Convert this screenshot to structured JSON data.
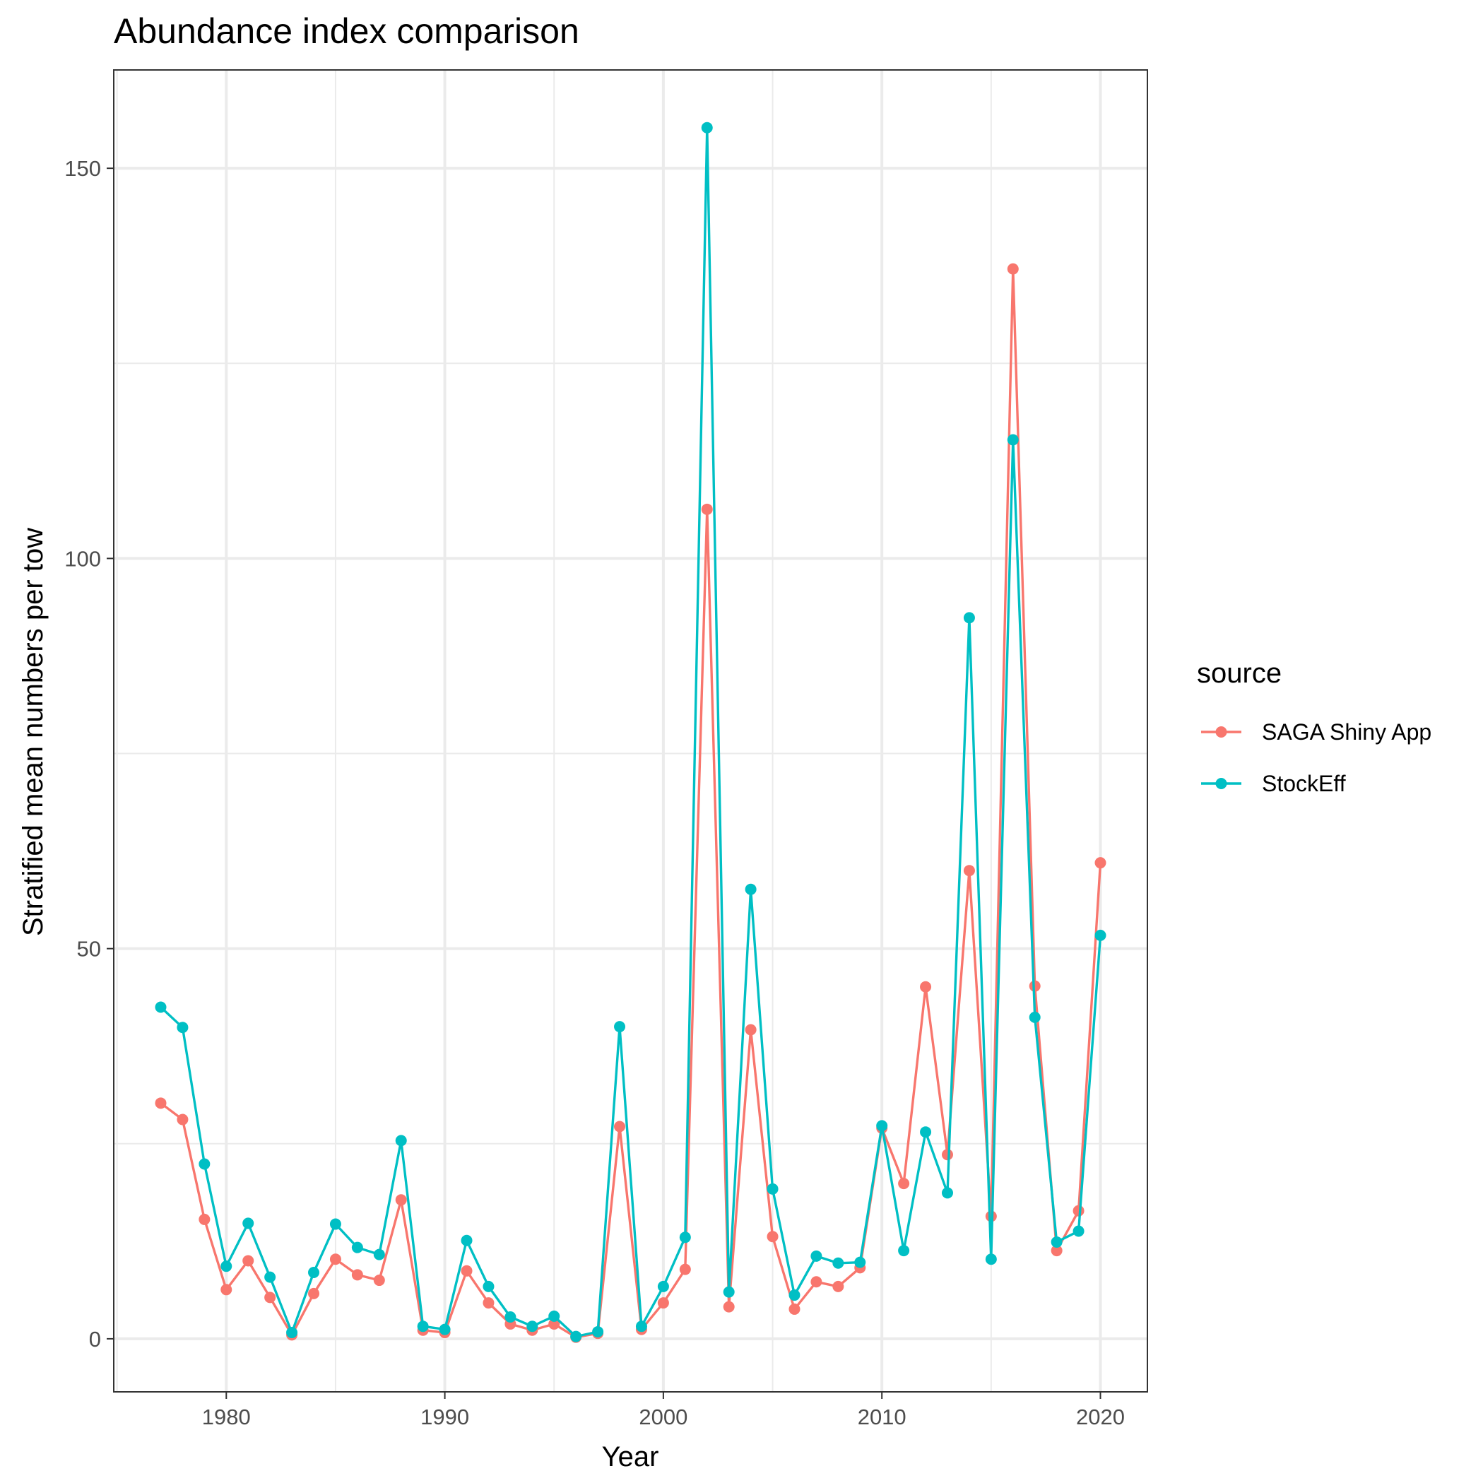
{
  "chart_data": {
    "type": "line",
    "title": "Abundance index comparison",
    "xlabel": "Year",
    "ylabel": "Stratified mean numbers per tow",
    "xlim": [
      1974.85,
      2022.15
    ],
    "ylim": [
      -6.8,
      162.6
    ],
    "x_ticks": [
      1980,
      1990,
      2000,
      2010,
      2020
    ],
    "y_ticks": [
      0,
      50,
      100,
      150
    ],
    "grid": true,
    "legend": {
      "title": "source",
      "position": "right"
    },
    "x": [
      1977,
      1978,
      1979,
      1980,
      1981,
      1982,
      1983,
      1984,
      1985,
      1986,
      1987,
      1988,
      1989,
      1990,
      1991,
      1992,
      1993,
      1994,
      1995,
      1996,
      1997,
      1998,
      1999,
      2000,
      2001,
      2002,
      2003,
      2004,
      2005,
      2006,
      2007,
      2008,
      2009,
      2010,
      2011,
      2012,
      2013,
      2014,
      2015,
      2016,
      2017,
      2018,
      2019,
      2020
    ],
    "series": [
      {
        "name": "SAGA Shiny App",
        "color": "#F8766D",
        "values": [
          30.2,
          28.1,
          15.3,
          6.3,
          10.0,
          5.3,
          0.5,
          5.8,
          10.2,
          8.2,
          7.5,
          17.8,
          1.1,
          0.8,
          8.7,
          4.6,
          1.9,
          1.1,
          1.9,
          0.2,
          0.7,
          27.2,
          1.2,
          4.6,
          8.9,
          106.3,
          4.1,
          39.6,
          13.1,
          3.8,
          7.3,
          6.7,
          9.1,
          27.0,
          19.9,
          45.1,
          23.6,
          60.0,
          15.7,
          137.1,
          45.2,
          11.3,
          16.4,
          61.0
        ],
        "point_shape": "circle"
      },
      {
        "name": "StockEff",
        "color": "#00BFC4",
        "values": [
          42.5,
          39.9,
          22.4,
          9.3,
          14.8,
          7.9,
          0.8,
          8.5,
          14.7,
          11.7,
          10.8,
          25.4,
          1.6,
          1.2,
          12.6,
          6.7,
          2.8,
          1.6,
          2.9,
          0.3,
          0.9,
          40.0,
          1.6,
          6.7,
          13.0,
          155.2,
          6.0,
          57.6,
          19.2,
          5.6,
          10.6,
          9.7,
          9.8,
          27.3,
          11.3,
          26.5,
          18.7,
          92.4,
          10.2,
          115.2,
          41.2,
          12.4,
          13.8,
          51.7
        ],
        "point_shape": "circle"
      }
    ]
  }
}
